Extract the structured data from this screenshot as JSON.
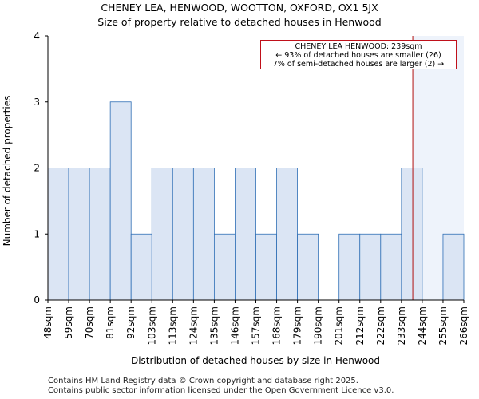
{
  "chart_data": {
    "type": "bar",
    "title": "CHENEY LEA, HENWOOD, WOOTTON, OXFORD, OX1 5JX",
    "subtitle": "Size of property relative to detached houses in Henwood",
    "xlabel": "Distribution of detached houses by size in Henwood",
    "ylabel": "Number of detached properties",
    "ylim": [
      0,
      4
    ],
    "yticks": [
      "0",
      "1",
      "2",
      "3",
      "4"
    ],
    "bin_edges": [
      "48sqm",
      "59sqm",
      "70sqm",
      "81sqm",
      "92sqm",
      "103sqm",
      "113sqm",
      "124sqm",
      "135sqm",
      "146sqm",
      "157sqm",
      "168sqm",
      "179sqm",
      "190sqm",
      "201sqm",
      "212sqm",
      "222sqm",
      "233sqm",
      "244sqm",
      "255sqm",
      "266sqm"
    ],
    "values": [
      2,
      2,
      2,
      3,
      1,
      2,
      2,
      2,
      1,
      2,
      1,
      2,
      1,
      0,
      1,
      1,
      1,
      2,
      0,
      1
    ],
    "marker": {
      "value_sqm": 239,
      "label": "CHENEY LEA HENWOOD: 239sqm"
    },
    "annotation": {
      "line1": "CHENEY LEA HENWOOD: 239sqm",
      "line2": "← 93% of detached houses are smaller (26)",
      "line3": "7% of semi-detached houses are larger (2) →"
    },
    "colors": {
      "bar_fill": "#dbe5f4",
      "bar_edge": "#2e6eb5",
      "marker": "#b01010",
      "highlight_region": "#eef3fb"
    }
  },
  "footer": {
    "line1": "Contains HM Land Registry data © Crown copyright and database right 2025.",
    "line2": "Contains public sector information licensed under the Open Government Licence v3.0."
  }
}
